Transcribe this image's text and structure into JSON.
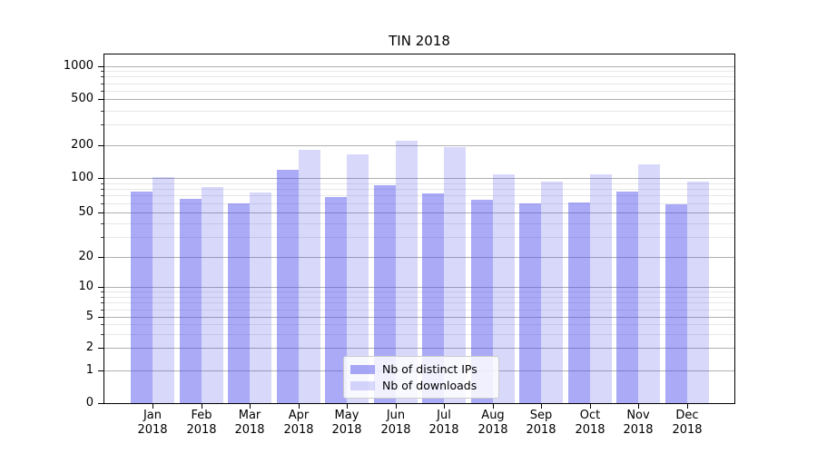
{
  "chart_data": {
    "type": "bar",
    "title": "TIN 2018",
    "categories": [
      "Jan",
      "Feb",
      "Mar",
      "Apr",
      "May",
      "Jun",
      "Jul",
      "Aug",
      "Sep",
      "Oct",
      "Nov",
      "Dec"
    ],
    "year_label": "2018",
    "series": [
      {
        "name": "Nb of distinct IPs",
        "color": "#4d4dee",
        "alpha": 0.48,
        "values": [
          76,
          65,
          60,
          118,
          68,
          87,
          73,
          64,
          60,
          61,
          76,
          58
        ]
      },
      {
        "name": "Nb of downloads",
        "color": "#4d4dee",
        "alpha": 0.22,
        "values": [
          102,
          83,
          75,
          180,
          164,
          216,
          190,
          107,
          93,
          108,
          133,
          93
        ]
      }
    ],
    "xlabel": "",
    "ylabel": "",
    "yscale": "symlog",
    "y_ticks": [
      0,
      1,
      2,
      5,
      10,
      20,
      50,
      100,
      200,
      500,
      1000
    ],
    "y_minor_ticks": [
      3,
      4,
      6,
      7,
      8,
      9,
      30,
      40,
      60,
      70,
      80,
      90,
      300,
      400,
      600,
      700,
      800,
      900
    ],
    "ylim": [
      0,
      1290
    ],
    "grid": true,
    "legend_position": "lower center",
    "colors": {
      "bar_base": "#4d4dee",
      "grid_major": "#b0b0b0",
      "grid_minor": "#e7e7e7",
      "spine": "#000000",
      "background": "#ffffff"
    }
  }
}
